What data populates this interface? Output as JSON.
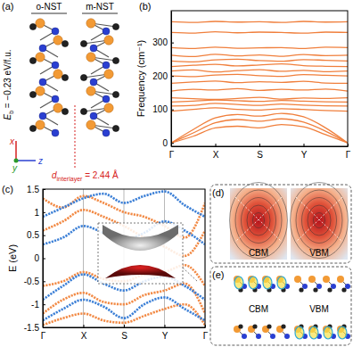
{
  "panel_labels": [
    "(a)",
    "(b)",
    "(c)",
    "(d)",
    "(e)"
  ],
  "structure": {
    "labels": [
      "o-NST",
      "m-NST"
    ],
    "binding_energy": {
      "symbol": "E",
      "subscript": "b",
      "text": " = −0.23 eV/f.u."
    },
    "interlayer_distance": {
      "symbol": "d",
      "subscript": "interlayer",
      "text": " = 2.44 Å"
    },
    "axes": [
      "x",
      "y",
      "z"
    ]
  },
  "chart_data": [
    {
      "type": "line",
      "ylabel": "Frequency (cm⁻¹)",
      "color": "#f07f3c",
      "line_style": "solid",
      "x": [
        0,
        0.5,
        1,
        1.5,
        2,
        2.5,
        3,
        3.5,
        4
      ],
      "xlim": [
        0,
        4
      ],
      "xticks": [
        {
          "value": 0,
          "label": "Γ"
        },
        {
          "value": 1,
          "label": "X"
        },
        {
          "value": 2,
          "label": "S"
        },
        {
          "value": 3,
          "label": "Y"
        },
        {
          "value": 4,
          "label": "Γ"
        }
      ],
      "ylim": [
        -10,
        395
      ],
      "yticks": [
        0,
        100,
        200,
        300
      ],
      "series": [
        {
          "values": [
            0,
            20,
            45,
            50,
            45,
            55,
            48,
            25,
            0
          ]
        },
        {
          "values": [
            0,
            30,
            60,
            70,
            65,
            72,
            62,
            35,
            0
          ]
        },
        {
          "values": [
            0,
            40,
            75,
            85,
            80,
            88,
            78,
            45,
            0
          ]
        },
        {
          "values": [
            95,
            100,
            105,
            100,
            98,
            102,
            100,
            97,
            95
          ]
        },
        {
          "values": [
            110,
            112,
            118,
            115,
            112,
            116,
            113,
            111,
            110
          ]
        },
        {
          "values": [
            122,
            125,
            128,
            126,
            124,
            127,
            125,
            123,
            122
          ]
        },
        {
          "values": [
            135,
            132,
            130,
            133,
            136,
            131,
            134,
            133,
            135
          ]
        },
        {
          "values": [
            155,
            160,
            158,
            162,
            157,
            160,
            158,
            161,
            155
          ]
        },
        {
          "values": [
            178,
            182,
            185,
            180,
            183,
            181,
            184,
            179,
            178
          ]
        },
        {
          "values": [
            200,
            198,
            203,
            205,
            201,
            199,
            204,
            202,
            200
          ]
        },
        {
          "values": [
            215,
            218,
            212,
            216,
            219,
            214,
            217,
            213,
            215
          ]
        },
        {
          "values": [
            228,
            232,
            235,
            230,
            233,
            236,
            231,
            229,
            228
          ]
        },
        {
          "values": [
            245,
            242,
            248,
            250,
            246,
            244,
            249,
            247,
            245
          ]
        },
        {
          "values": [
            262,
            258,
            265,
            260,
            263,
            259,
            264,
            261,
            262
          ]
        },
        {
          "values": [
            285,
            282,
            286,
            283,
            284,
            285,
            282,
            286,
            285
          ]
        },
        {
          "values": [
            330,
            328,
            332,
            329,
            331,
            330,
            328,
            331,
            330
          ]
        },
        {
          "values": [
            362,
            360,
            363,
            361,
            362,
            360,
            363,
            361,
            362
          ]
        }
      ]
    },
    {
      "type": "line",
      "ylabel": "E (eV)",
      "grid": "x",
      "line_style": "dotted",
      "x": [
        0,
        0.5,
        1,
        1.5,
        2,
        2.5,
        3,
        3.5,
        4
      ],
      "xlim": [
        0,
        4
      ],
      "xticks": [
        {
          "value": 0,
          "label": "Γ"
        },
        {
          "value": 1,
          "label": "X"
        },
        {
          "value": 2,
          "label": "S"
        },
        {
          "value": 3,
          "label": "Y"
        },
        {
          "value": 4,
          "label": "Γ"
        }
      ],
      "ylim": [
        -1.5,
        1.5
      ],
      "yticks": [
        -1.5,
        -1,
        -0.5,
        0,
        0.5,
        1,
        1.5
      ],
      "series": [
        {
          "color": "#f28a45",
          "values": [
            0.6,
            0.8,
            1.05,
            0.9,
            0.7,
            0.45,
            0.25,
            0.05,
            0.6
          ]
        },
        {
          "color": "#f28a45",
          "values": [
            1.3,
            1.1,
            1.35,
            1.2,
            1.0,
            0.9,
            0.7,
            0.45,
            1.2
          ]
        },
        {
          "color": "#f28a45",
          "values": [
            -0.6,
            -0.5,
            -0.3,
            -0.45,
            -0.5,
            -0.35,
            -0.3,
            -0.15,
            -0.6
          ]
        },
        {
          "color": "#f28a45",
          "values": [
            -1.2,
            -0.9,
            -0.75,
            -0.95,
            -1.0,
            -0.8,
            -0.7,
            -0.55,
            -1.2
          ]
        },
        {
          "color": "#f28a45",
          "values": [
            -1.45,
            -1.3,
            -1.2,
            -1.35,
            -1.4,
            -1.25,
            -1.1,
            -1.0,
            -1.45
          ]
        },
        {
          "color": "#3b7fd6",
          "values": [
            0.3,
            0.45,
            0.7,
            0.55,
            0.4,
            0.55,
            0.8,
            0.6,
            0.3
          ]
        },
        {
          "color": "#3b7fd6",
          "values": [
            0.9,
            1.1,
            1.3,
            1.4,
            1.2,
            1.35,
            1.45,
            1.15,
            0.9
          ]
        },
        {
          "color": "#3b7fd6",
          "values": [
            -0.9,
            -0.6,
            -0.35,
            -0.55,
            -0.7,
            -0.5,
            -0.4,
            -0.6,
            -0.9
          ]
        },
        {
          "color": "#3b7fd6",
          "values": [
            -1.35,
            -1.1,
            -0.9,
            -1.05,
            -1.3,
            -1.0,
            -0.85,
            -1.1,
            -1.35
          ]
        }
      ]
    }
  ],
  "contours": {
    "labels": [
      "CBM",
      "VBM"
    ]
  },
  "charge_density": {
    "labels": [
      "CBM",
      "VBM"
    ]
  }
}
